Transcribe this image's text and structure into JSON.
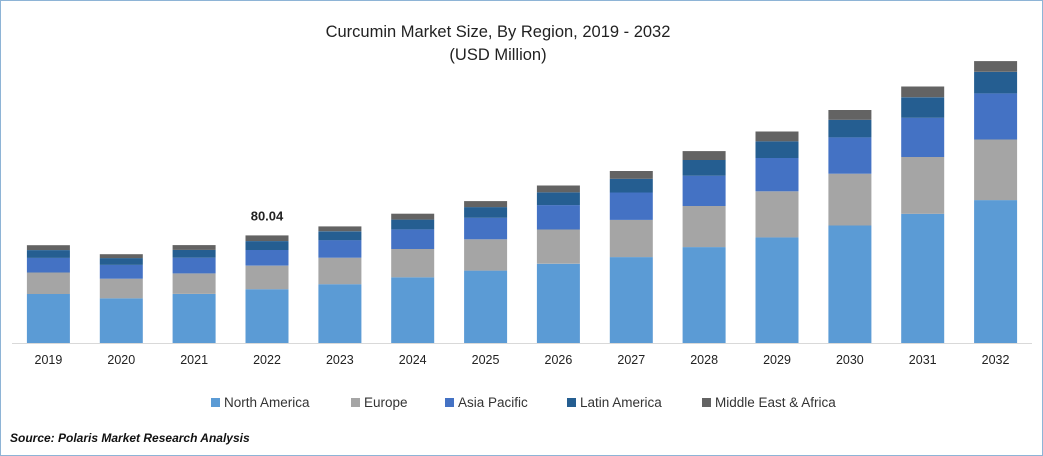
{
  "title": {
    "line1": "Curcumin Market Size, By Region, 2019 - 2032",
    "line2": "(USD Million)"
  },
  "source": "Source: Polaris  Market Research Analysis",
  "chart_data": {
    "type": "bar",
    "stacked": true,
    "title": "Curcumin Market Size, By Region, 2019 - 2032",
    "subtitle": "(USD Million)",
    "xlabel": "",
    "ylabel": "",
    "categories": [
      "2019",
      "2020",
      "2021",
      "2022",
      "2023",
      "2024",
      "2025",
      "2026",
      "2027",
      "2028",
      "2029",
      "2030",
      "2031",
      "2032"
    ],
    "series": [
      {
        "name": "North America",
        "color": "#5b9bd5",
        "values": [
          36.5,
          33.3,
          36.5,
          40.1,
          43.8,
          48.9,
          53.9,
          59.0,
          64.0,
          71.4,
          78.7,
          87.5,
          96.2,
          106.4
        ]
      },
      {
        "name": "Europe",
        "color": "#a5a5a5",
        "values": [
          16.0,
          14.6,
          15.3,
          17.5,
          19.7,
          21.1,
          23.3,
          25.5,
          27.7,
          30.6,
          34.3,
          38.6,
          42.3,
          45.2
        ]
      },
      {
        "name": "Asia Pacific",
        "color": "#4472c4",
        "values": [
          10.9,
          10.2,
          11.7,
          11.7,
          13.1,
          14.6,
          16.0,
          18.2,
          20.4,
          22.6,
          24.8,
          27.0,
          29.2,
          34.3
        ]
      },
      {
        "name": "Latin America",
        "color": "#255e91",
        "values": [
          5.8,
          5.1,
          5.8,
          6.6,
          6.6,
          7.3,
          8.0,
          9.5,
          10.2,
          11.7,
          12.4,
          13.1,
          15.3,
          16.0
        ]
      },
      {
        "name": "Middle East & Africa",
        "color": "#636363",
        "values": [
          3.6,
          2.9,
          3.6,
          4.2,
          3.6,
          4.4,
          4.5,
          5.1,
          5.8,
          6.6,
          7.3,
          7.3,
          8.0,
          8.0
        ]
      }
    ],
    "data_labels": [
      {
        "category": "2022",
        "text": "80.04"
      }
    ],
    "ylim": [
      0,
      210
    ],
    "grid": false,
    "legend_position": "bottom"
  }
}
